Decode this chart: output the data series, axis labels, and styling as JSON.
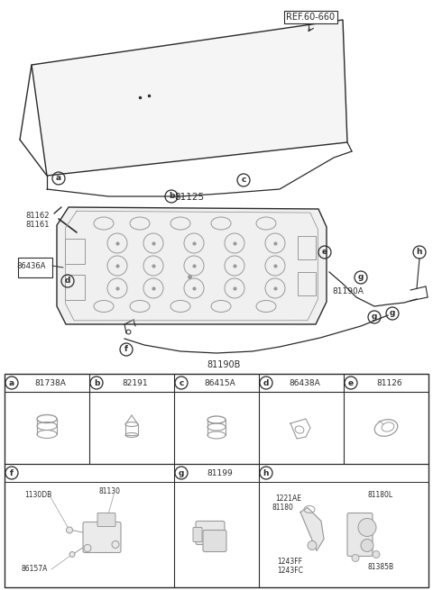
{
  "bg_color": "#ffffff",
  "figsize": [
    4.8,
    6.55
  ],
  "dpi": 100,
  "ref_label": "REF.60-660",
  "main_part": "81125",
  "cable_a_label": "81190A",
  "cable_b_label": "81190B",
  "labels_81162_81161": [
    "81162",
    "81161"
  ],
  "label_86436A": "86436A",
  "table_row1": [
    {
      "letter": "a",
      "part": "81738A"
    },
    {
      "letter": "b",
      "part": "82191"
    },
    {
      "letter": "c",
      "part": "86415A"
    },
    {
      "letter": "d",
      "part": "86438A"
    },
    {
      "letter": "e",
      "part": "81126"
    }
  ],
  "table_row2_labels": [
    {
      "letter": "f",
      "part": "",
      "cols": 2
    },
    {
      "letter": "g",
      "part": "81199",
      "cols": 1
    },
    {
      "letter": "h",
      "part": "",
      "cols": 2
    }
  ],
  "f_labels": [
    "1130DB",
    "81130",
    "86157A"
  ],
  "h_labels": [
    "1221AE",
    "81180",
    "81180L",
    "1243FF",
    "1243FC",
    "81385B"
  ],
  "line_color": "#2a2a2a",
  "light_gray": "#d8d8d8",
  "mid_gray": "#999999"
}
